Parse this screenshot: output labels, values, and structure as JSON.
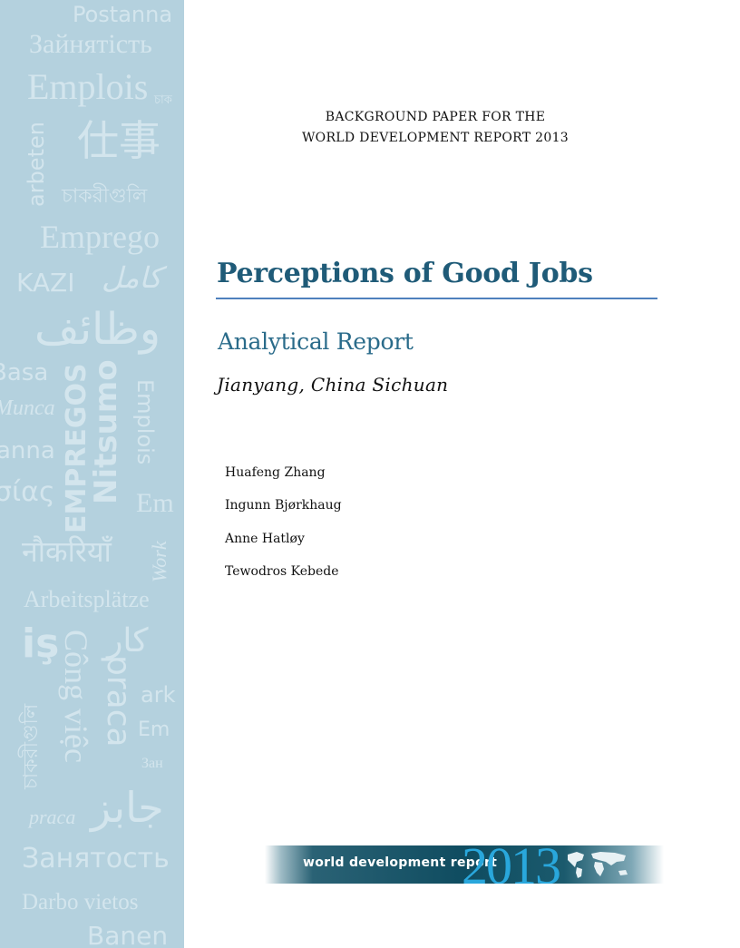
{
  "sidebar": {
    "watermark_words": [
      "Postanna",
      "Зайнятість",
      "Emplois",
      "চাক",
      "arbeten",
      "仕事",
      "চাকরীগুলি",
      "Emprego",
      "KAZI",
      "کامل",
      "وظائف",
      "Basa",
      "Munca",
      "EMPREGOS",
      "Nitsumo",
      "Emplois",
      "anna",
      "σίας",
      "Em",
      "नौकरियाँ",
      "Work",
      "Arbeitsplätze",
      "iş",
      "Công việc",
      "کار",
      "praca",
      "ark",
      "চাকরীগুলি",
      "Em",
      "Зан",
      "praca",
      "جابز",
      "Занятость",
      "Darbo vietos",
      "Banen"
    ]
  },
  "header": {
    "line1": "BACKGROUND PAPER FOR THE",
    "line2": "WORLD DEVELOPMENT REPORT 2013"
  },
  "title": "Perceptions of Good Jobs",
  "subtitle": "Analytical Report",
  "location": "Jianyang, China Sichuan",
  "authors": [
    "Huafeng Zhang",
    "Ingunn Bjørkhaug",
    "Anne Hatløy",
    "Tewodros Kebede"
  ],
  "banner": {
    "text": "world development report",
    "year": "2013"
  },
  "colors": {
    "sidebar": "#b4d1de",
    "title": "#1f5b78",
    "rule": "#4f81bd",
    "banner": "#0f4c60",
    "year": "#29a7dc"
  }
}
